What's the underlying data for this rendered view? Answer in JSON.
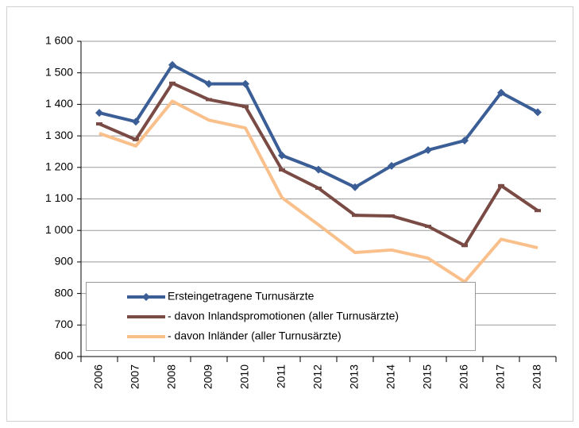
{
  "chart_data": {
    "type": "line",
    "categories": [
      "2006",
      "2007",
      "2008",
      "2009",
      "2010",
      "2011",
      "2012",
      "2013",
      "2014",
      "2015",
      "2016",
      "2017",
      "2018"
    ],
    "series": [
      {
        "name": "Ersteingetragene Turnusärzte",
        "color": "#3b5e96",
        "marker": "diamond",
        "values": [
          1373,
          1345,
          1525,
          1465,
          1465,
          1238,
          1193,
          1137,
          1205,
          1255,
          1285,
          1437,
          1375
        ]
      },
      {
        "name": "- davon Inlandspromotionen (aller Turnusärzte)",
        "color": "#7a4a44",
        "marker": "dash",
        "values": [
          1338,
          1288,
          1467,
          1415,
          1393,
          1192,
          1134,
          1048,
          1046,
          1013,
          952,
          1142,
          1063
        ]
      },
      {
        "name": "- davon Inländer (aller Turnusärzte)",
        "color": "#f9c08c",
        "marker": "none",
        "values": [
          1308,
          1268,
          1410,
          1350,
          1325,
          1104,
          1018,
          930,
          938,
          912,
          837,
          972,
          945
        ]
      }
    ],
    "ylim": [
      600,
      1600
    ],
    "yticks": [
      600,
      700,
      800,
      900,
      {
        "value": 1000,
        "label": "1 000"
      },
      {
        "value": 1100,
        "label": "1 100"
      },
      {
        "value": 1200,
        "label": "1 200"
      },
      {
        "value": 1300,
        "label": "1 300"
      },
      {
        "value": 1400,
        "label": "1 400"
      },
      {
        "value": 1500,
        "label": "1 500"
      },
      {
        "value": 1600,
        "label": "1 600"
      }
    ],
    "grid": true,
    "legend": "bottom-left"
  }
}
